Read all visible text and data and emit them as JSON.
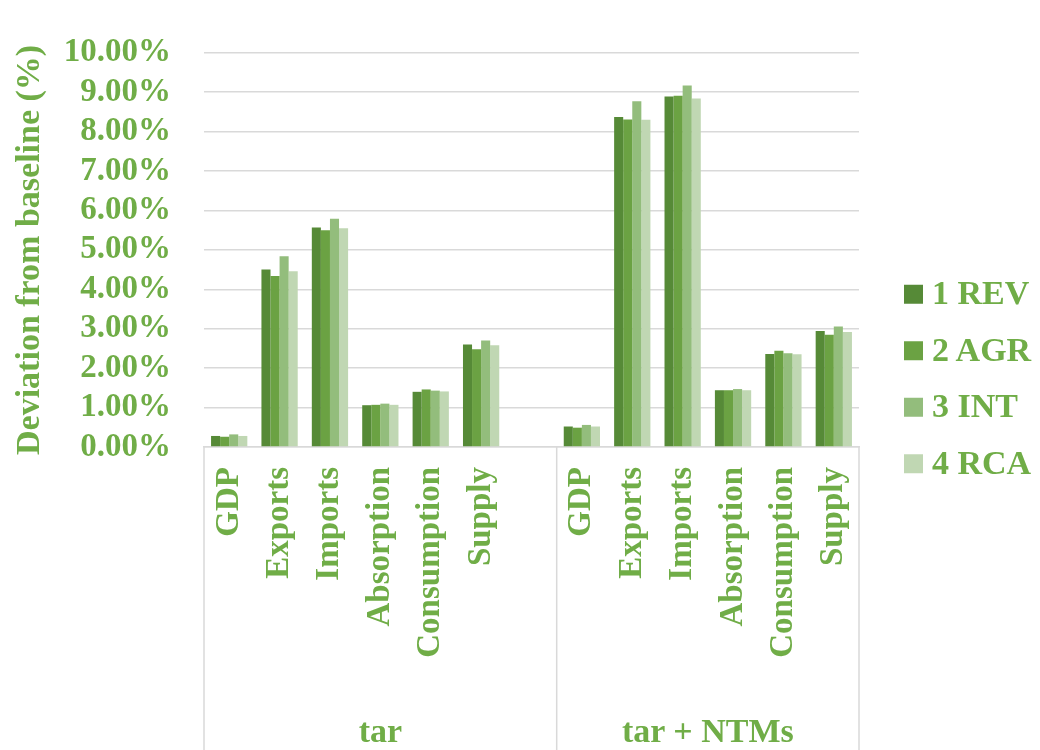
{
  "chart_data": {
    "type": "bar",
    "ylabel": "Deviation from baseline (%)",
    "categories": [
      "GDP",
      "Exports",
      "Imports",
      "Absorption",
      "Consumption",
      "Supply",
      null,
      "GDP",
      "Exports",
      "Imports",
      "Absorption",
      "Consumption",
      "Supply"
    ],
    "series": [
      {
        "name": "1 REV",
        "color": "#568a37",
        "values": [
          0.28,
          4.5,
          5.57,
          1.06,
          1.4,
          2.6,
          null,
          0.52,
          8.37,
          8.89,
          1.44,
          2.36,
          2.94
        ]
      },
      {
        "name": "2 AGR",
        "color": "#6ba243",
        "values": [
          0.26,
          4.34,
          5.5,
          1.07,
          1.46,
          2.48,
          null,
          0.49,
          8.31,
          8.91,
          1.44,
          2.44,
          2.85
        ]
      },
      {
        "name": "3 INT",
        "color": "#93bd7c",
        "values": [
          0.32,
          4.84,
          5.79,
          1.1,
          1.43,
          2.7,
          null,
          0.56,
          8.77,
          9.17,
          1.47,
          2.38,
          3.06
        ]
      },
      {
        "name": "4 RCA",
        "color": "#c0d7b3",
        "values": [
          0.28,
          4.46,
          5.55,
          1.07,
          1.41,
          2.58,
          null,
          0.52,
          8.3,
          8.84,
          1.44,
          2.35,
          2.92
        ]
      }
    ],
    "ylim": [
      0,
      10
    ],
    "yticks": [
      {
        "value": 0,
        "label": "0.00%"
      },
      {
        "value": 1,
        "label": "1.00%"
      },
      {
        "value": 2,
        "label": "2.00%"
      },
      {
        "value": 3,
        "label": "3.00%"
      },
      {
        "value": 4,
        "label": "4.00%"
      },
      {
        "value": 5,
        "label": "5.00%"
      },
      {
        "value": 6,
        "label": "6.00%"
      },
      {
        "value": 7,
        "label": "7.00%"
      },
      {
        "value": 8,
        "label": "8.00%"
      },
      {
        "value": 9,
        "label": "9.00%"
      },
      {
        "value": 10,
        "label": "10.00%"
      }
    ],
    "grid": "y",
    "legend": "right",
    "annotations": [
      "tar",
      "tar + NTMs"
    ]
  }
}
